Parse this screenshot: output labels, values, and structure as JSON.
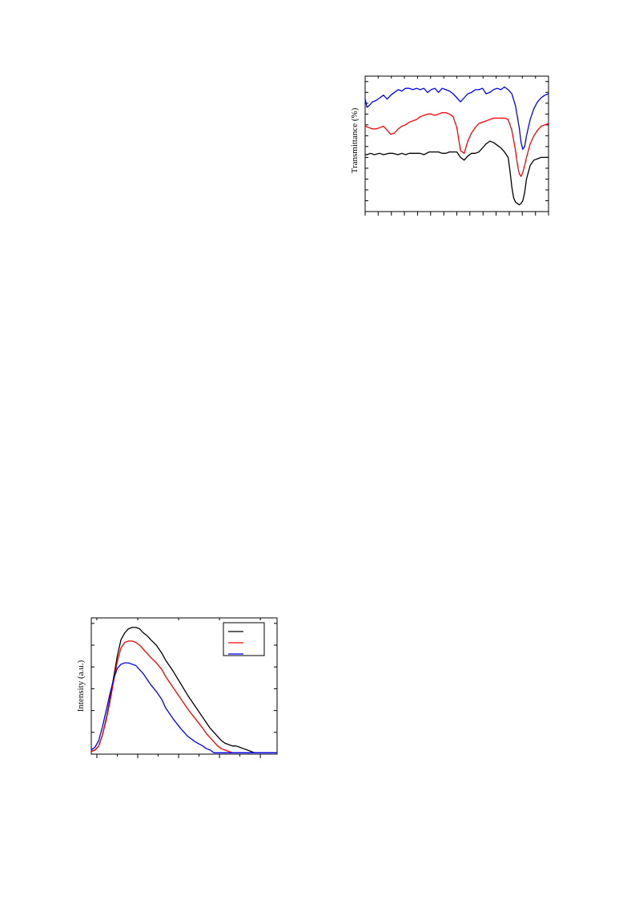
{
  "colors": {
    "series1": "#000000",
    "series2": "#ff0000",
    "series3": "#0000ff",
    "frame": "#000000"
  },
  "chart_data": [
    {
      "type": "line",
      "title": "",
      "xlabel": "",
      "ylabel": "Transmittance (%)",
      "grid": false,
      "legend": "none",
      "xlim": [
        0,
        100
      ],
      "ylim": [
        0,
        100
      ],
      "x_ticks": [
        0,
        7.1,
        14.3,
        21.4,
        28.6,
        35.7,
        42.9,
        50,
        57.1,
        64.3,
        71.4,
        78.6,
        85.7,
        92.9,
        100
      ],
      "y_ticks": [
        8,
        16,
        24,
        32,
        40,
        48,
        56,
        64,
        72,
        80,
        88,
        96
      ],
      "series": [
        {
          "color": "#000000",
          "x": [
            0,
            1,
            3,
            5,
            8,
            10,
            13,
            15,
            18,
            20,
            22,
            24,
            26,
            28,
            30,
            32,
            35,
            38,
            40,
            42,
            44,
            46,
            48,
            50,
            52,
            54,
            56,
            58,
            60,
            62,
            64,
            66,
            68,
            70,
            72,
            74,
            76,
            78,
            79,
            80,
            81,
            82,
            84,
            85,
            86,
            87,
            88,
            90,
            92,
            94,
            96,
            98,
            100
          ],
          "y": [
            42,
            42,
            43,
            42,
            43,
            42,
            43,
            43,
            42,
            43,
            42,
            43,
            43,
            43,
            43,
            42,
            44,
            44,
            44,
            43,
            43,
            44,
            44,
            44,
            40,
            38,
            41,
            43,
            43,
            44,
            47,
            50,
            52,
            51,
            49,
            47,
            44,
            40,
            30,
            18,
            10,
            7,
            5,
            6,
            8,
            14,
            24,
            34,
            38,
            39,
            40,
            40,
            40
          ]
        },
        {
          "color": "#ff0000",
          "x": [
            0,
            2,
            4,
            6,
            8,
            10,
            12,
            14,
            16,
            18,
            20,
            22,
            24,
            26,
            28,
            30,
            32,
            34,
            36,
            38,
            40,
            42,
            44,
            46,
            48,
            50,
            52,
            54,
            56,
            58,
            60,
            62,
            64,
            66,
            68,
            70,
            72,
            74,
            76,
            78,
            80,
            82,
            83,
            84,
            85,
            86,
            87,
            88,
            90,
            92,
            94,
            96,
            98,
            100
          ],
          "y": [
            63,
            62,
            61,
            61,
            62,
            63,
            60,
            57,
            58,
            61,
            63,
            64,
            66,
            67,
            68,
            70,
            71,
            72,
            72,
            71,
            72,
            73,
            73,
            72,
            70,
            62,
            45,
            43,
            52,
            58,
            62,
            65,
            66,
            67,
            68,
            69,
            69,
            69,
            69,
            68,
            60,
            45,
            35,
            28,
            26,
            29,
            34,
            40,
            50,
            56,
            60,
            63,
            64,
            65
          ]
        },
        {
          "color": "#0000ff",
          "x": [
            0,
            1,
            2,
            4,
            6,
            8,
            10,
            12,
            14,
            16,
            18,
            20,
            22,
            24,
            26,
            28,
            30,
            32,
            34,
            36,
            38,
            40,
            42,
            44,
            46,
            48,
            50,
            52,
            54,
            56,
            58,
            60,
            62,
            64,
            66,
            68,
            70,
            72,
            74,
            76,
            78,
            80,
            82,
            84,
            85,
            86,
            87,
            88,
            90,
            92,
            94,
            96,
            98,
            100
          ],
          "y": [
            83,
            77,
            78,
            81,
            82,
            84,
            86,
            83,
            86,
            88,
            90,
            89,
            91,
            91,
            90,
            91,
            90,
            91,
            88,
            90,
            91,
            88,
            91,
            90,
            89,
            87,
            84,
            81,
            84,
            87,
            88,
            90,
            90,
            91,
            87,
            88,
            90,
            91,
            90,
            92,
            90,
            87,
            78,
            62,
            51,
            46,
            48,
            56,
            68,
            76,
            81,
            84,
            86,
            87
          ]
        }
      ]
    },
    {
      "type": "line",
      "title": "",
      "xlabel": "",
      "ylabel": "Intensity (a.u.)",
      "grid": false,
      "legend": "top-right",
      "xlim": [
        0,
        100
      ],
      "ylim": [
        0,
        100
      ],
      "x_ticks": [
        3,
        25,
        47,
        69,
        91
      ],
      "x_minor_ticks": [
        14,
        36,
        58,
        80
      ],
      "y_ticks": [
        16,
        32,
        48,
        64,
        80,
        96
      ],
      "series": [
        {
          "color": "#000000",
          "x": [
            0,
            2,
            4,
            6,
            8,
            10,
            12,
            14,
            16,
            18,
            20,
            22,
            24,
            26,
            28,
            30,
            32,
            35,
            38,
            40,
            44,
            48,
            52,
            56,
            60,
            62,
            64,
            66,
            68,
            70,
            72,
            74,
            76,
            78,
            80,
            82,
            84,
            86,
            88,
            90,
            92,
            94,
            96,
            98,
            100
          ],
          "y": [
            2,
            3,
            6,
            14,
            26,
            40,
            56,
            72,
            84,
            89,
            92,
            93,
            93,
            92,
            89,
            87,
            84,
            80,
            74,
            69,
            61,
            52,
            43,
            35,
            27,
            23,
            19,
            16,
            13,
            10,
            8,
            7,
            6,
            6,
            5,
            4,
            3,
            2,
            1,
            1,
            1,
            1,
            1,
            1,
            1
          ]
        },
        {
          "color": "#ff0000",
          "x": [
            0,
            2,
            4,
            6,
            8,
            10,
            12,
            14,
            16,
            18,
            20,
            22,
            24,
            26,
            28,
            30,
            32,
            35,
            38,
            40,
            44,
            48,
            52,
            56,
            60,
            62,
            64,
            66,
            68,
            70,
            72,
            74,
            76,
            78,
            80,
            82,
            84,
            86,
            88,
            90,
            92,
            94,
            96,
            98,
            100
          ],
          "y": [
            2,
            3,
            6,
            14,
            25,
            38,
            53,
            68,
            78,
            82,
            83,
            83,
            82,
            80,
            77,
            74,
            71,
            67,
            62,
            57,
            49,
            41,
            33,
            26,
            19,
            15,
            12,
            9,
            6,
            4,
            3,
            2,
            1,
            1,
            1,
            1,
            1,
            1,
            1,
            1,
            1,
            1,
            1,
            1,
            1
          ]
        },
        {
          "color": "#0000ff",
          "x": [
            0,
            2,
            4,
            6,
            8,
            10,
            12,
            14,
            16,
            18,
            20,
            22,
            24,
            26,
            28,
            30,
            32,
            35,
            38,
            40,
            44,
            48,
            52,
            56,
            60,
            62,
            64,
            66,
            68,
            70,
            72,
            74,
            76,
            78,
            80,
            82,
            84,
            86,
            88,
            90,
            92,
            94,
            96,
            98,
            100
          ],
          "y": [
            3,
            5,
            10,
            20,
            32,
            44,
            55,
            63,
            66,
            67,
            67,
            66,
            65,
            62,
            59,
            55,
            51,
            46,
            40,
            34,
            26,
            19,
            13,
            9,
            6,
            4,
            3,
            1,
            1,
            1,
            1,
            1,
            1,
            1,
            1,
            1,
            1,
            1,
            1,
            1,
            1,
            1,
            1,
            1,
            1
          ]
        }
      ]
    }
  ]
}
